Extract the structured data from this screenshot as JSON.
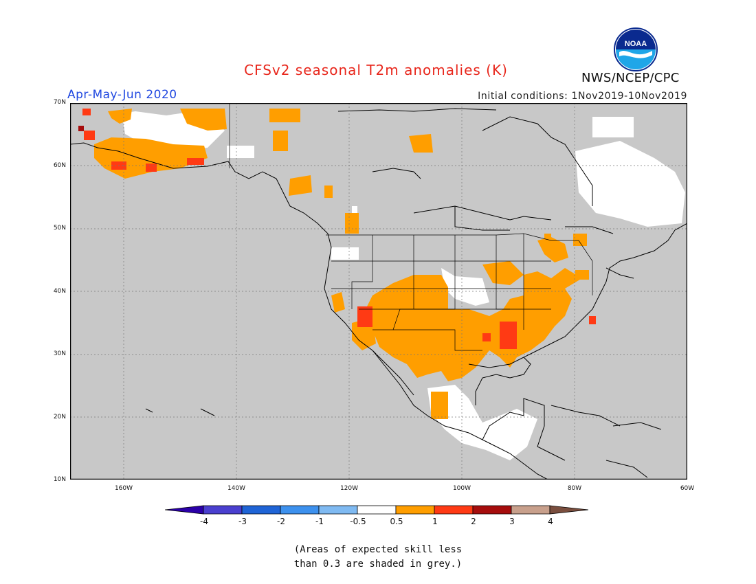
{
  "header": {
    "title": "CFSv2 seasonal T2m anomalies (K)",
    "agency": "NWS/NCEP/CPC",
    "logo_text": "NOAA",
    "season": "Apr-May-Jun 2020",
    "initial_conditions": "Initial conditions: 1Nov2019-10Nov2019"
  },
  "map": {
    "projection": "lat-lon",
    "lat_labels": [
      "70N",
      "60N",
      "50N",
      "40N",
      "30N",
      "20N",
      "10N"
    ],
    "lon_labels": [
      "160W",
      "140W",
      "120W",
      "100W",
      "80W",
      "60W"
    ],
    "lat_range": [
      10,
      70
    ],
    "lon_range": [
      -170,
      -60
    ],
    "grid": "dotted",
    "background_color": "#c8c8c8",
    "coast_color": "#000000"
  },
  "colorbar": {
    "labels": [
      "-4",
      "-3",
      "-2",
      "-1",
      "-0.5",
      "0.5",
      "1",
      "2",
      "3",
      "4"
    ],
    "colors": [
      "#2b00a8",
      "#4a3fcf",
      "#1f64d6",
      "#3d91ee",
      "#7fbaf2",
      "#ffffff",
      "#ff9e00",
      "#ff3a14",
      "#a60d0d",
      "#c8a08c",
      "#7a4e3e"
    ]
  },
  "note": {
    "line1": "(Areas of expected skill less",
    "line2": "than 0.3 are shaded in grey.)"
  }
}
